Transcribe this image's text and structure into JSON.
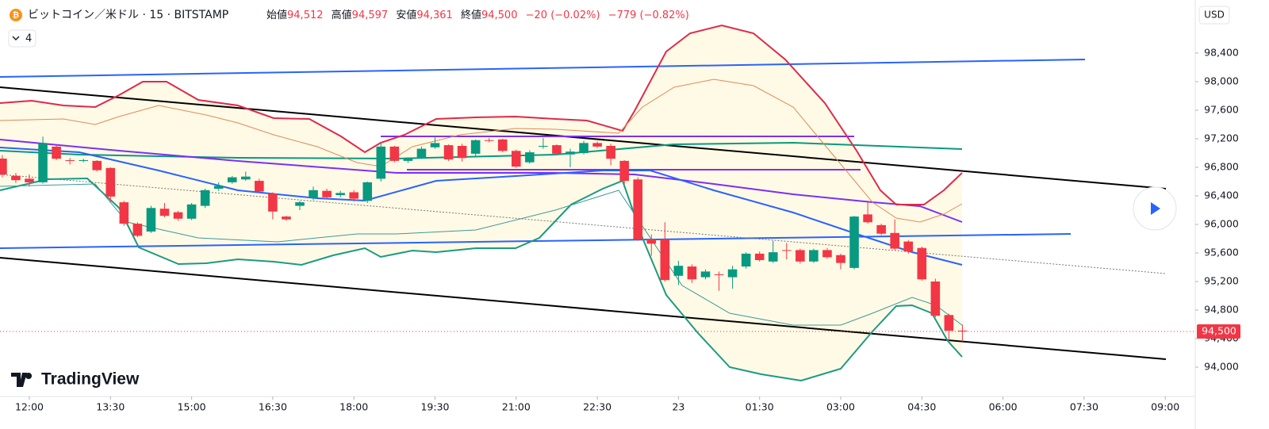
{
  "header": {
    "symbol": "ビットコイン／米ドル · 15 · BITSTAMP",
    "ohlc": [
      {
        "label": "始値",
        "value": "94,512"
      },
      {
        "label": "高値",
        "value": "94,597"
      },
      {
        "label": "安値",
        "value": "94,361"
      },
      {
        "label": "終値",
        "value": "94,500"
      }
    ],
    "change": "−20 (−0.02%)",
    "change_day": "−779 (−0.82%)",
    "indicator_count": "4",
    "currency": "USD",
    "brand": "TradingView",
    "price_tag": "94,500"
  },
  "chart_data": {
    "type": "candlestick",
    "up_color": "#089981",
    "down_color": "#f23645",
    "grid": false,
    "x": [
      -0.5,
      -0.25,
      0,
      0.25,
      0.5,
      0.75,
      1,
      1.25,
      1.5,
      1.75,
      2,
      2.25,
      2.5,
      2.75,
      3,
      3.25,
      3.5,
      3.75,
      4,
      4.25,
      4.5,
      4.75,
      5,
      5.25,
      5.5,
      5.75,
      6,
      6.25,
      6.5,
      6.75,
      7,
      7.25,
      7.5,
      7.75,
      8,
      8.25,
      8.5,
      8.75,
      9,
      9.25,
      9.5,
      9.75,
      10,
      10.25,
      10.5,
      10.75,
      11,
      11.25,
      11.5,
      11.75,
      12,
      12.25,
      12.5,
      12.75,
      13,
      13.25,
      13.5,
      13.75,
      14,
      14.25,
      14.5,
      14.75,
      15,
      15.25,
      15.5,
      15.75,
      16,
      16.25,
      16.5,
      16.75,
      17,
      17.25
    ],
    "open": [
      96922,
      96680,
      96640,
      96590,
      97090,
      96900,
      96890,
      96890,
      96790,
      96310,
      96010,
      95900,
      96220,
      96170,
      96080,
      96260,
      96500,
      96590,
      96630,
      96610,
      96430,
      96110,
      96260,
      96370,
      96470,
      96410,
      96450,
      96330,
      96640,
      97090,
      96890,
      96940,
      97080,
      97110,
      97100,
      96990,
      97180,
      97190,
      97030,
      96870,
      97090,
      97110,
      96980,
      97000,
      97140,
      97100,
      96890,
      96630,
      95790,
      95790,
      95280,
      95410,
      95260,
      95300,
      95260,
      95410,
      95590,
      95480,
      95640,
      95640,
      95480,
      95640,
      95570,
      95390,
      96140,
      95990,
      95880,
      95760,
      95670,
      95200,
      94730,
      94512
    ],
    "high": [
      96970,
      96720,
      96700,
      97230,
      97110,
      96930,
      96920,
      96900,
      96800,
      96330,
      96030,
      96260,
      96300,
      96190,
      96300,
      96500,
      96590,
      96680,
      96740,
      96640,
      96450,
      96120,
      96330,
      96530,
      96500,
      96470,
      96480,
      96600,
      97140,
      97100,
      96940,
      97090,
      97230,
      97120,
      97130,
      97190,
      97210,
      97200,
      97050,
      97040,
      97210,
      97120,
      97060,
      97170,
      97160,
      97130,
      96900,
      96660,
      95860,
      96030,
      95490,
      95440,
      95370,
      95340,
      95420,
      95610,
      95620,
      95770,
      95740,
      95660,
      95660,
      95670,
      95590,
      96120,
      96330,
      96010,
      96070,
      95780,
      95690,
      95240,
      94750,
      94597
    ],
    "low": [
      96660,
      96580,
      96530,
      96570,
      96900,
      96840,
      96870,
      96740,
      96310,
      95980,
      95820,
      95880,
      96100,
      96050,
      96060,
      96230,
      96470,
      96570,
      96610,
      96440,
      96070,
      96050,
      96200,
      96340,
      96360,
      96380,
      96320,
      96300,
      96600,
      96870,
      96860,
      96920,
      97060,
      96890,
      96880,
      96960,
      97150,
      97010,
      96790,
      96850,
      97060,
      96970,
      96800,
      96980,
      97070,
      96830,
      96560,
      95770,
      95560,
      95200,
      95150,
      95180,
      95230,
      95070,
      95100,
      95380,
      95480,
      95460,
      95510,
      95450,
      95460,
      95520,
      95370,
      95370,
      96010,
      95850,
      95640,
      95590,
      95210,
      94700,
      94370,
      94361
    ],
    "close": [
      96700,
      96620,
      96590,
      97140,
      96920,
      96890,
      96900,
      96760,
      96390,
      96010,
      95840,
      96230,
      96120,
      96080,
      96280,
      96480,
      96540,
      96660,
      96670,
      96460,
      96180,
      96070,
      96310,
      96480,
      96380,
      96440,
      96360,
      96590,
      97090,
      96890,
      96920,
      97060,
      97140,
      96910,
      96930,
      97180,
      97170,
      97030,
      96810,
      97010,
      97100,
      96990,
      97020,
      97140,
      97090,
      96920,
      96610,
      95790,
      95730,
      95220,
      95420,
      95230,
      95340,
      95290,
      95370,
      95590,
      95500,
      95610,
      95630,
      95480,
      95640,
      95540,
      95460,
      96110,
      96030,
      95870,
      95660,
      95620,
      95230,
      94720,
      94510,
      94500
    ],
    "xlim": [
      -0.5425,
      21.525
    ],
    "xticks": [
      {
        "value": 0,
        "label": "12:00"
      },
      {
        "value": 1.5,
        "label": "13:30"
      },
      {
        "value": 3,
        "label": "15:00"
      },
      {
        "value": 4.5,
        "label": "16:30"
      },
      {
        "value": 6,
        "label": "18:00"
      },
      {
        "value": 7.5,
        "label": "19:30"
      },
      {
        "value": 9,
        "label": "21:00"
      },
      {
        "value": 10.5,
        "label": "22:30"
      },
      {
        "value": 12,
        "label": "23"
      },
      {
        "value": 13.5,
        "label": "01:30"
      },
      {
        "value": 15,
        "label": "03:00"
      },
      {
        "value": 16.5,
        "label": "04:30"
      },
      {
        "value": 18,
        "label": "06:00"
      },
      {
        "value": 19.5,
        "label": "07:30"
      },
      {
        "value": 21,
        "label": "09:00"
      }
    ],
    "ylim": [
      93589,
      99144
    ],
    "yticks": [
      {
        "value": 94000,
        "label": "94,000"
      },
      {
        "value": 94400,
        "label": "94,400"
      },
      {
        "value": 94800,
        "label": "94,800"
      },
      {
        "value": 95200,
        "label": "95,200"
      },
      {
        "value": 95600,
        "label": "95,600"
      },
      {
        "value": 96000,
        "label": "96,000"
      },
      {
        "value": 96400,
        "label": "96,400"
      },
      {
        "value": 96800,
        "label": "96,800"
      },
      {
        "value": 97200,
        "label": "97,200"
      },
      {
        "value": 97600,
        "label": "97,600"
      },
      {
        "value": 98000,
        "label": "98,000"
      },
      {
        "value": 98400,
        "label": "98,400"
      }
    ]
  }
}
